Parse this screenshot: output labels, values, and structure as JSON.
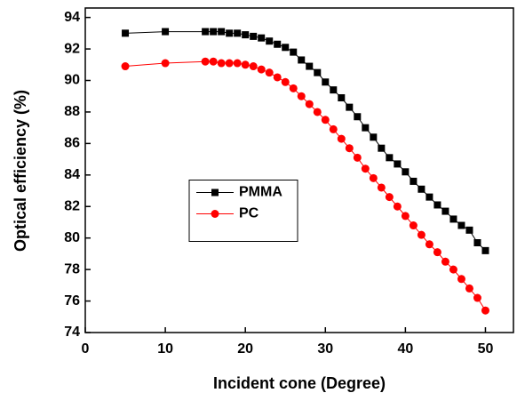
{
  "chart_data": {
    "type": "line",
    "x_label": "Incident cone (Degree)",
    "y_label": "Optical efficiency (%)",
    "x": [
      5,
      10,
      15,
      16,
      17,
      18,
      19,
      20,
      21,
      22,
      23,
      24,
      25,
      26,
      27,
      28,
      29,
      30,
      31,
      32,
      33,
      34,
      35,
      36,
      37,
      38,
      39,
      40,
      41,
      42,
      43,
      44,
      45,
      46,
      47,
      48,
      49,
      50
    ],
    "series": [
      {
        "name": "PMMA",
        "color": "#000000",
        "marker": "square",
        "values": [
          93.0,
          93.1,
          93.1,
          93.1,
          93.1,
          93.0,
          93.0,
          92.9,
          92.8,
          92.7,
          92.5,
          92.3,
          92.1,
          91.8,
          91.3,
          90.9,
          90.5,
          89.9,
          89.4,
          88.9,
          88.3,
          87.7,
          87.0,
          86.4,
          85.7,
          85.1,
          84.7,
          84.2,
          83.6,
          83.1,
          82.6,
          82.1,
          81.7,
          81.2,
          80.8,
          80.5,
          79.7,
          79.2
        ]
      },
      {
        "name": "PC",
        "color": "#ff0000",
        "marker": "circle",
        "values": [
          90.9,
          91.1,
          91.2,
          91.2,
          91.1,
          91.1,
          91.1,
          91.0,
          90.9,
          90.7,
          90.5,
          90.2,
          89.9,
          89.5,
          89.0,
          88.5,
          88.0,
          87.5,
          86.9,
          86.3,
          85.7,
          85.1,
          84.4,
          83.8,
          83.2,
          82.6,
          82.0,
          81.4,
          80.8,
          80.2,
          79.6,
          79.1,
          78.5,
          78.0,
          77.4,
          76.8,
          76.2,
          75.4
        ]
      }
    ],
    "xlim": [
      0,
      53.5
    ],
    "xticks": [
      0,
      10,
      20,
      30,
      40,
      50
    ],
    "ylim": [
      74,
      94.6
    ],
    "yticks": [
      74,
      76,
      78,
      80,
      82,
      84,
      86,
      88,
      90,
      92,
      94
    ],
    "grid": false,
    "legend_position": "center-left"
  }
}
